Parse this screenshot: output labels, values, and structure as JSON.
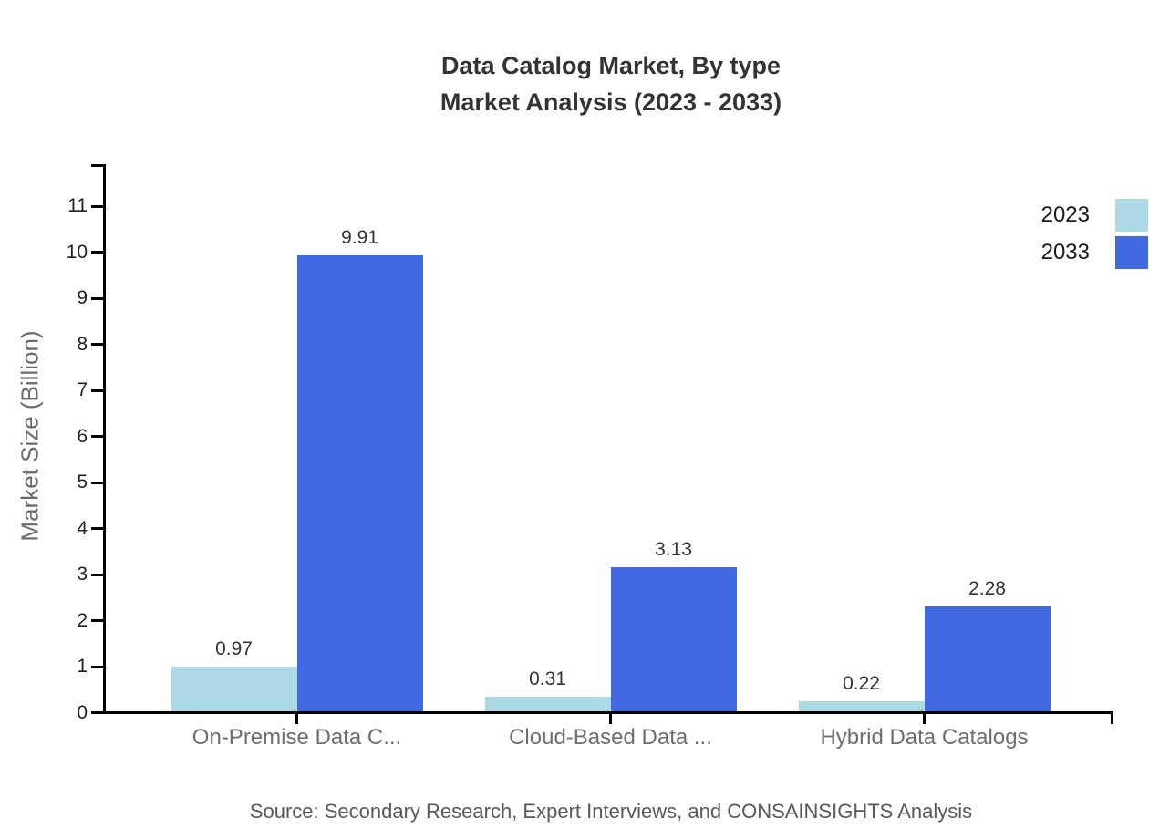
{
  "title": {
    "line1": "Data Catalog Market, By type",
    "line2": "Market Analysis (2023 - 2033)"
  },
  "source": "Source: Secondary Research, Expert Interviews, and CONSAINSIGHTS Analysis",
  "chart_data": {
    "type": "bar",
    "title": "Data Catalog Market, By type Market Analysis (2023 - 2033)",
    "categories": [
      "On-Premise Data C...",
      "Cloud-Based Data ...",
      "Hybrid Data Catalogs"
    ],
    "series": [
      {
        "name": "2023",
        "color": "#ADD8E6",
        "values": [
          0.97,
          0.31,
          0.22
        ]
      },
      {
        "name": "2033",
        "color": "#4169E1",
        "values": [
          9.91,
          3.13,
          2.28
        ]
      }
    ],
    "xlabel": "",
    "ylabel": "Market Size (Billion)",
    "ylim": [
      0,
      11
    ],
    "ytick_step": 1,
    "yticks": [
      0,
      1,
      2,
      3,
      4,
      5,
      6,
      7,
      8,
      9,
      10,
      11
    ],
    "grid": false,
    "value_labels": true,
    "legend_position": "top-right"
  },
  "colors": {
    "axis": "#000000",
    "title_text": "#333333",
    "tick_label_text": "#222222",
    "category_label_text": "#6d6e70",
    "axis_title_text": "#6b6b6b",
    "source_text": "#58595b",
    "background": "#ffffff"
  }
}
